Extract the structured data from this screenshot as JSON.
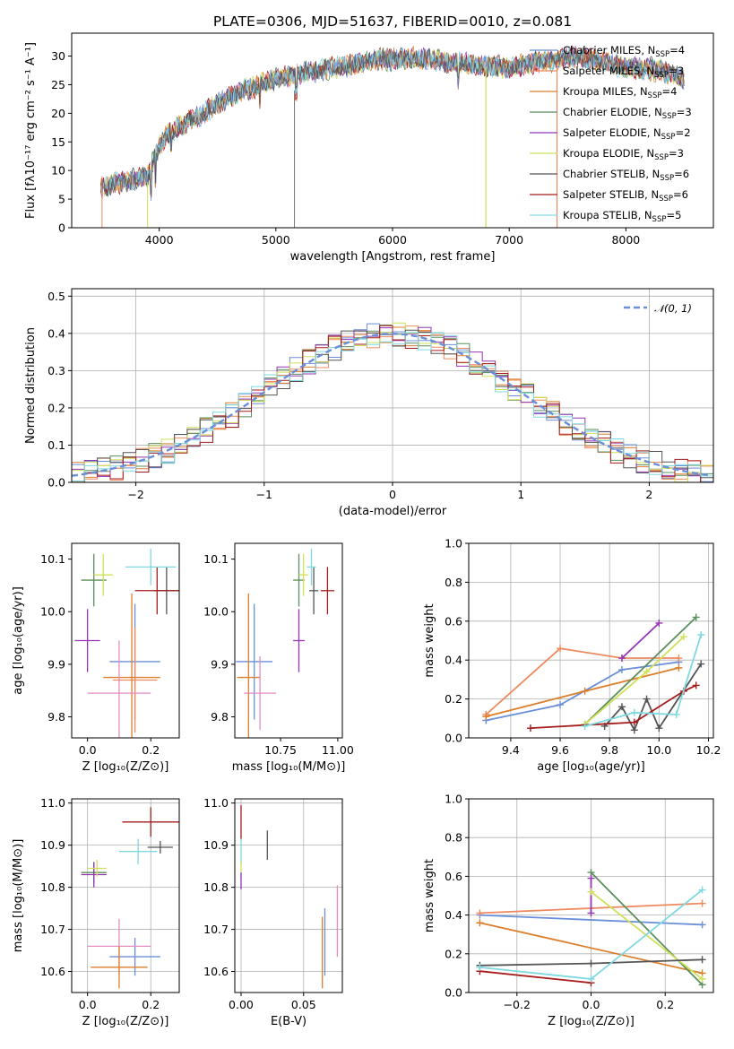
{
  "colors": {
    "Chabrier MILES": "#6a8fd8",
    "Salpeter MILES": "#ee8a5f",
    "Kroupa MILES": "#dd7e2c",
    "Chabrier ELODIE": "#5b8f5b",
    "Salpeter ELODIE": "#9535b5",
    "Kroupa ELODIE": "#d0e05a",
    "Chabrier STELIB": "#555555",
    "Salpeter STELIB": "#a51c1c",
    "Kroupa STELIB": "#7fd9e0",
    "pink": "#e38cc0",
    "gaussian": "#6a8fd8"
  },
  "chart_data": [
    {
      "panel": "spectrum",
      "type": "line",
      "title": "PLATE=0306, MJD=51637, FIBERID=0010, z=0.081",
      "xlabel": "wavelength [Angstrom, rest frame]",
      "ylabel": "Flux [fλ10⁻¹⁷ erg cm⁻² s⁻¹ A⁻¹]",
      "xlim": [
        3250,
        8750
      ],
      "ylim": [
        0,
        34
      ],
      "xticks": [
        "4000",
        "5000",
        "6000",
        "7000",
        "8000"
      ],
      "yticks": [
        "0",
        "5",
        "10",
        "15",
        "20",
        "25",
        "30"
      ],
      "grid": false,
      "legend_position": "right",
      "legend": [
        {
          "label": "Chabrier MILES, N",
          "sub": "SSP",
          "suffix": "=4"
        },
        {
          "label": "Salpeter MILES, N",
          "sub": "SSP",
          "suffix": "=3"
        },
        {
          "label": "Kroupa MILES, N",
          "sub": "SSP",
          "suffix": "=4"
        },
        {
          "label": "Chabrier ELODIE, N",
          "sub": "SSP",
          "suffix": "=3"
        },
        {
          "label": "Salpeter ELODIE, N",
          "sub": "SSP",
          "suffix": "=2"
        },
        {
          "label": "Kroupa ELODIE, N",
          "sub": "SSP",
          "suffix": "=3"
        },
        {
          "label": "Chabrier STELIB, N",
          "sub": "SSP",
          "suffix": "=6"
        },
        {
          "label": "Salpeter STELIB, N",
          "sub": "SSP",
          "suffix": "=6"
        },
        {
          "label": "Kroupa STELIB, N",
          "sub": "SSP",
          "suffix": "=5"
        }
      ],
      "continuum": {
        "x": [
          3500,
          3700,
          3900,
          4000,
          4100,
          4300,
          4600,
          5000,
          5500,
          5900,
          6300,
          6700,
          7000,
          7300,
          7600,
          8000,
          8300,
          8500
        ],
        "y": [
          7,
          8,
          9,
          14,
          17,
          19,
          23,
          26,
          28,
          29.5,
          29.5,
          28.5,
          28,
          29,
          30,
          28,
          27.5,
          26
        ]
      }
    },
    {
      "panel": "residual-histogram",
      "type": "line",
      "xlabel": "(data-model)/error",
      "ylabel": "Normed distribution",
      "xlim": [
        -2.5,
        2.5
      ],
      "ylim": [
        0,
        0.52
      ],
      "xticks": [
        "−2",
        "−1",
        "0",
        "1",
        "2"
      ],
      "yticks": [
        "0.0",
        "0.1",
        "0.2",
        "0.3",
        "0.4",
        "0.5"
      ],
      "grid": true,
      "legend": "𝒩(0, 1)",
      "bin_width": 0.1,
      "reference_curve": "normal pdf, mean 0, sigma 1"
    },
    {
      "panel": "age-vs-Z",
      "type": "scatter",
      "xlabel": "Z [log₁₀(Z/Z⊙)]",
      "ylabel": "age  [log₁₀(age/yr)]",
      "xlim": [
        -0.05,
        0.29
      ],
      "ylim": [
        9.76,
        10.13
      ],
      "xticks": [
        "0.0",
        "0.2"
      ],
      "yticks": [
        "9.8",
        "9.9",
        "10.0",
        "10.1"
      ],
      "grid": false,
      "points": [
        {
          "series": "Chabrier MILES",
          "x": 0.15,
          "xerr": 0.08,
          "y": 9.905,
          "yerr": 0.11
        },
        {
          "series": "Salpeter MILES",
          "x": 0.15,
          "xerr": 0.07,
          "y": 9.87,
          "yerr": 0.1
        },
        {
          "series": "Kroupa MILES",
          "x": 0.14,
          "xerr": 0.09,
          "y": 9.875,
          "yerr": 0.16
        },
        {
          "series": "Chabrier ELODIE",
          "x": 0.02,
          "xerr": 0.04,
          "y": 10.06,
          "yerr": 0.05
        },
        {
          "series": "Salpeter ELODIE",
          "x": 0.0,
          "xerr": 0.04,
          "y": 9.945,
          "yerr": 0.06
        },
        {
          "series": "Kroupa ELODIE",
          "x": 0.05,
          "xerr": 0.03,
          "y": 10.07,
          "yerr": 0.04
        },
        {
          "series": "Chabrier STELIB",
          "x": 0.25,
          "xerr": 0.04,
          "y": 10.04,
          "yerr": 0.045
        },
        {
          "series": "Salpeter STELIB",
          "x": 0.22,
          "xerr": 0.07,
          "y": 10.04,
          "yerr": 0.045
        },
        {
          "series": "Kroupa STELIB",
          "x": 0.2,
          "xerr": 0.08,
          "y": 10.085,
          "yerr": 0.035
        },
        {
          "series": "pink",
          "x": 0.1,
          "xerr": 0.1,
          "y": 9.845,
          "yerr": 0.1
        }
      ]
    },
    {
      "panel": "age-vs-mass",
      "type": "scatter",
      "xlabel": "mass [log₁₀(M/M⊙)]",
      "ylabel": "",
      "xlim": [
        10.55,
        11.02
      ],
      "ylim": [
        9.76,
        10.13
      ],
      "xticks": [
        "10.75",
        "11.00"
      ],
      "yticks": [
        "9.8",
        "9.9",
        "10.0",
        "10.1"
      ],
      "grid": false,
      "points": [
        {
          "series": "Chabrier MILES",
          "x": 10.635,
          "xerr": 0.08,
          "y": 9.905,
          "yerr": 0.11
        },
        {
          "series": "Kroupa MILES",
          "x": 10.61,
          "xerr": 0.05,
          "y": 9.875,
          "yerr": 0.16
        },
        {
          "series": "pink",
          "x": 10.66,
          "xerr": 0.07,
          "y": 9.845,
          "yerr": 0.07
        },
        {
          "series": "Chabrier ELODIE",
          "x": 10.83,
          "xerr": 0.025,
          "y": 10.06,
          "yerr": 0.05
        },
        {
          "series": "Salpeter ELODIE",
          "x": 10.83,
          "xerr": 0.025,
          "y": 9.945,
          "yerr": 0.06
        },
        {
          "series": "Kroupa ELODIE",
          "x": 10.85,
          "xerr": 0.02,
          "y": 10.07,
          "yerr": 0.04
        },
        {
          "series": "Chabrier STELIB",
          "x": 10.895,
          "xerr": 0.02,
          "y": 10.04,
          "yerr": 0.045
        },
        {
          "series": "Salpeter STELIB",
          "x": 10.955,
          "xerr": 0.03,
          "y": 10.04,
          "yerr": 0.045
        },
        {
          "series": "Kroupa STELIB",
          "x": 10.885,
          "xerr": 0.02,
          "y": 10.085,
          "yerr": 0.035
        }
      ]
    },
    {
      "panel": "mass-weight-vs-age",
      "type": "line",
      "xlabel": "age  [log₁₀(age/yr)]",
      "ylabel": "mass weight",
      "xlim": [
        9.23,
        10.22
      ],
      "ylim": [
        0,
        1
      ],
      "xticks": [
        "9.4",
        "9.6",
        "9.8",
        "10.0",
        "10.2"
      ],
      "yticks": [
        "0.0",
        "0.2",
        "0.4",
        "0.6",
        "0.8",
        "1.0"
      ],
      "grid": true,
      "series": [
        {
          "name": "Chabrier MILES",
          "x": [
            9.3,
            9.6,
            9.85,
            10.08
          ],
          "y": [
            0.09,
            0.17,
            0.35,
            0.39
          ]
        },
        {
          "name": "Salpeter MILES",
          "x": [
            9.3,
            9.6,
            9.85,
            10.08
          ],
          "y": [
            0.12,
            0.46,
            0.41,
            0.41
          ]
        },
        {
          "name": "Kroupa MILES",
          "x": [
            9.3,
            9.7,
            10.08
          ],
          "y": [
            0.11,
            0.24,
            0.36
          ]
        },
        {
          "name": "Chabrier ELODIE",
          "x": [
            9.7,
            10.15
          ],
          "y": [
            0.07,
            0.62
          ]
        },
        {
          "name": "Salpeter ELODIE",
          "x": [
            9.85,
            10.0
          ],
          "y": [
            0.41,
            0.59
          ]
        },
        {
          "name": "Kroupa ELODIE",
          "x": [
            9.7,
            9.95,
            10.1
          ],
          "y": [
            0.07,
            0.34,
            0.52
          ]
        },
        {
          "name": "Chabrier STELIB",
          "x": [
            9.78,
            9.85,
            9.9,
            9.95,
            10.0,
            10.17
          ],
          "y": [
            0.06,
            0.16,
            0.04,
            0.2,
            0.05,
            0.38
          ]
        },
        {
          "name": "Salpeter STELIB",
          "x": [
            9.48,
            9.9,
            10.1,
            10.15
          ],
          "y": [
            0.05,
            0.08,
            0.24,
            0.27
          ]
        },
        {
          "name": "Kroupa STELIB",
          "x": [
            9.7,
            9.9,
            10.07,
            10.17
          ],
          "y": [
            0.06,
            0.13,
            0.12,
            0.53
          ]
        }
      ]
    },
    {
      "panel": "mass-vs-Z",
      "type": "scatter",
      "xlabel": "Z [log₁₀(Z/Z⊙)]",
      "ylabel": "mass [log₁₀(M/M⊙)]",
      "xlim": [
        -0.05,
        0.29
      ],
      "ylim": [
        10.55,
        11.01
      ],
      "xticks": [
        "0.0",
        "0.2"
      ],
      "yticks": [
        "10.6",
        "10.7",
        "10.8",
        "10.9",
        "11.0"
      ],
      "grid": true,
      "points": [
        {
          "series": "Chabrier MILES",
          "x": 0.15,
          "xerr": 0.08,
          "y": 10.635,
          "yerr": 0.045
        },
        {
          "series": "pink",
          "x": 0.1,
          "xerr": 0.1,
          "y": 10.66,
          "yerr": 0.065
        },
        {
          "series": "Kroupa MILES",
          "x": 0.1,
          "xerr": 0.09,
          "y": 10.61,
          "yerr": 0.05
        },
        {
          "series": "Chabrier ELODIE",
          "x": 0.02,
          "xerr": 0.04,
          "y": 10.835,
          "yerr": 0.025
        },
        {
          "series": "Salpeter ELODIE",
          "x": 0.02,
          "xerr": 0.04,
          "y": 10.83,
          "yerr": 0.03
        },
        {
          "series": "Kroupa ELODIE",
          "x": 0.03,
          "xerr": 0.03,
          "y": 10.845,
          "yerr": 0.02
        },
        {
          "series": "Chabrier STELIB",
          "x": 0.23,
          "xerr": 0.04,
          "y": 10.895,
          "yerr": 0.015
        },
        {
          "series": "Salpeter STELIB",
          "x": 0.2,
          "xerr": 0.09,
          "y": 10.955,
          "yerr": 0.035
        },
        {
          "series": "Kroupa STELIB",
          "x": 0.16,
          "xerr": 0.06,
          "y": 10.885,
          "yerr": 0.03
        }
      ]
    },
    {
      "panel": "mass-vs-EBV",
      "type": "scatter",
      "xlabel": "E(B-V)",
      "ylabel": "",
      "xlim": [
        -0.005,
        0.081
      ],
      "ylim": [
        10.55,
        11.01
      ],
      "xticks": [
        "0.00",
        "0.05"
      ],
      "yticks": [
        "10.6",
        "10.7",
        "10.8",
        "10.9",
        "11.0"
      ],
      "grid": true,
      "points": [
        {
          "series": "Salpeter STELIB",
          "x": 0.0,
          "y": 10.955,
          "yerr": 0.04
        },
        {
          "series": "Kroupa STELIB",
          "x": 0.0,
          "y": 10.885,
          "yerr": 0.03
        },
        {
          "series": "Kroupa ELODIE",
          "x": 0.0,
          "y": 10.84,
          "yerr": 0.02
        },
        {
          "series": "Salpeter ELODIE",
          "x": 0.0,
          "y": 10.815,
          "yerr": 0.02
        },
        {
          "series": "Chabrier STELIB",
          "x": 0.021,
          "y": 10.9,
          "yerr": 0.035
        },
        {
          "series": "Kroupa MILES",
          "x": 0.065,
          "y": 10.645,
          "yerr": 0.085
        },
        {
          "series": "Chabrier MILES",
          "x": 0.067,
          "y": 10.67,
          "yerr": 0.08
        },
        {
          "series": "pink",
          "x": 0.077,
          "y": 10.72,
          "yerr": 0.085
        }
      ]
    },
    {
      "panel": "mass-weight-vs-Z",
      "type": "line",
      "xlabel": "Z [log₁₀(Z/Z⊙)]",
      "ylabel": "mass weight",
      "xlim": [
        -0.33,
        0.33
      ],
      "ylim": [
        0,
        1
      ],
      "xticks": [
        "−0.2",
        "0.0",
        "0.2"
      ],
      "yticks": [
        "0.0",
        "0.2",
        "0.4",
        "0.6",
        "0.8",
        "1.0"
      ],
      "grid": true,
      "series": [
        {
          "name": "Chabrier MILES",
          "x": [
            -0.3,
            0.3
          ],
          "y": [
            0.4,
            0.35
          ]
        },
        {
          "name": "Salpeter MILES",
          "x": [
            -0.3,
            0.3
          ],
          "y": [
            0.41,
            0.46
          ]
        },
        {
          "name": "Kroupa MILES",
          "x": [
            -0.3,
            0.3
          ],
          "y": [
            0.36,
            0.1
          ]
        },
        {
          "name": "Chabrier ELODIE",
          "x": [
            0.0,
            0.3
          ],
          "y": [
            0.62,
            0.04
          ]
        },
        {
          "name": "Salpeter ELODIE",
          "x": [
            0.0,
            0.0
          ],
          "y": [
            0.41,
            0.59
          ]
        },
        {
          "name": "Kroupa ELODIE",
          "x": [
            0.0,
            0.3
          ],
          "y": [
            0.52,
            0.07
          ]
        },
        {
          "name": "Chabrier STELIB",
          "x": [
            -0.3,
            0.0,
            0.3
          ],
          "y": [
            0.14,
            0.15,
            0.17
          ]
        },
        {
          "name": "Salpeter STELIB",
          "x": [
            -0.3,
            0.0
          ],
          "y": [
            0.11,
            0.05
          ]
        },
        {
          "name": "Kroupa STELIB",
          "x": [
            -0.3,
            0.0,
            0.3
          ],
          "y": [
            0.13,
            0.07,
            0.53
          ]
        }
      ]
    }
  ]
}
